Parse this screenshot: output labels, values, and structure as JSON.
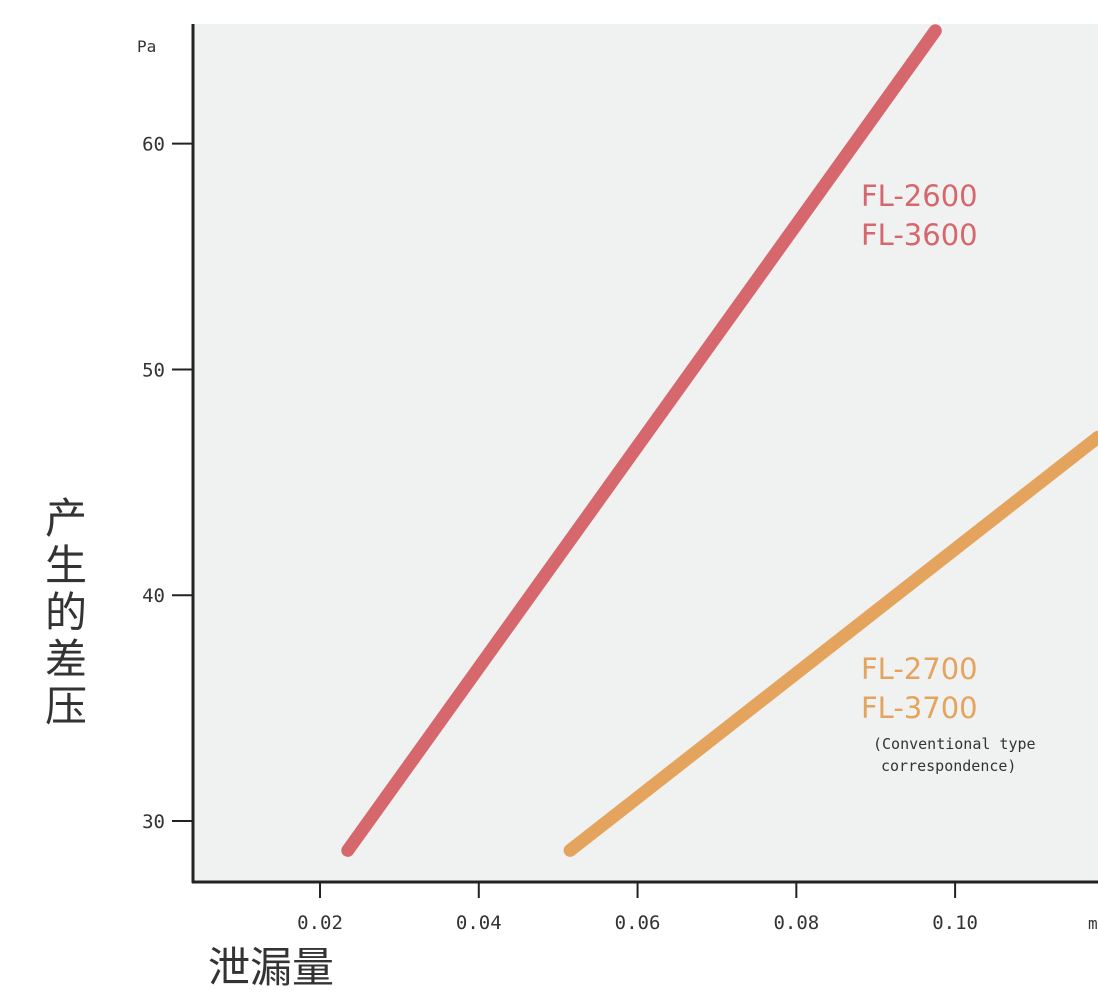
{
  "chart_data": {
    "type": "line",
    "ylabel": "产生的差压",
    "xlabel": "泄漏量",
    "yunit": "Pa",
    "xunit": "m",
    "xlim": [
      0.004,
      0.118
    ],
    "ylim": [
      27.3,
      65.3
    ],
    "xticks": [
      0.02,
      0.04,
      0.06,
      0.08,
      0.1
    ],
    "xtick_labels": [
      "0.02",
      "0.04",
      "0.06",
      "0.08",
      "0.10"
    ],
    "yticks": [
      30,
      40,
      50,
      60
    ],
    "ytick_labels": [
      "30",
      "40",
      "50",
      "60"
    ],
    "grid": false,
    "series": [
      {
        "name_lines": [
          "FL-2600",
          "FL-3600"
        ],
        "color": "#d6676c",
        "x": [
          0.0235,
          0.0975
        ],
        "y": [
          28.7,
          65.0
        ]
      },
      {
        "name_lines": [
          "FL-2700",
          "FL-3700"
        ],
        "note_lines": [
          "(Conventional type",
          "correspondence)"
        ],
        "color": "#e5a45e",
        "x": [
          0.0515,
          0.118
        ],
        "y": [
          28.7,
          47.0
        ]
      }
    ]
  }
}
